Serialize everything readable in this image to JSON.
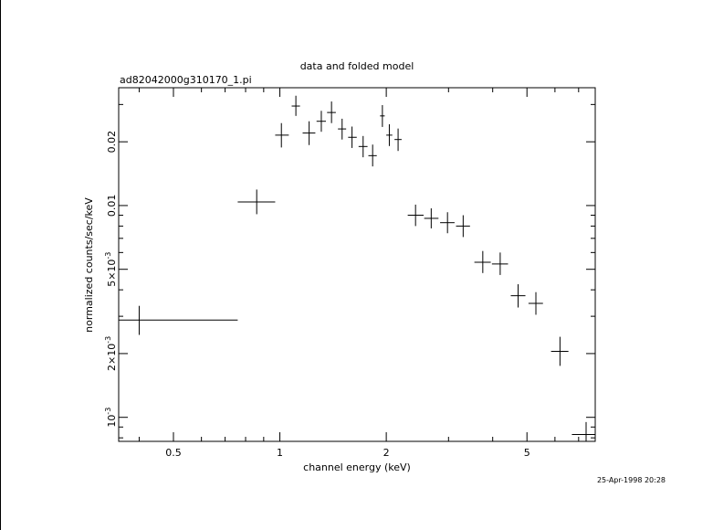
{
  "chart_data": {
    "type": "scatter",
    "title": "data and folded model",
    "subtitle": "ad82042000g310170_1.pi",
    "xlabel": "channel energy (keV)",
    "ylabel": "normalized counts/sec/keV",
    "timestamp": "25-Apr-1998 20:28",
    "xscale": "log",
    "yscale": "log",
    "xlim": [
      0.35,
      7.8
    ],
    "ylim": [
      0.00077,
      0.036
    ],
    "x_tick_labels": [
      "0.5",
      "1",
      "2",
      "5"
    ],
    "y_tick_labels": [
      "10^-3",
      "2×10^-3",
      "5×10^-3",
      "0.01",
      "0.02"
    ],
    "y_tick_label_parts": [
      {
        "base": "10",
        "exp": "-3"
      },
      {
        "base": "2×10",
        "exp": "-3"
      },
      {
        "base": "5×10",
        "exp": "-3"
      },
      {
        "base": "0.01",
        "exp": ""
      },
      {
        "base": "0.02",
        "exp": ""
      }
    ],
    "points": [
      {
        "x": 0.4,
        "xlo": 0.35,
        "xhi": 0.76,
        "y": 0.00288,
        "ylo": 0.00245,
        "yhi": 0.00336
      },
      {
        "x": 0.86,
        "xlo": 0.76,
        "xhi": 0.97,
        "y": 0.0104,
        "ylo": 0.0091,
        "yhi": 0.0119
      },
      {
        "x": 1.01,
        "xlo": 0.97,
        "xhi": 1.06,
        "y": 0.0215,
        "ylo": 0.0188,
        "yhi": 0.0245
      },
      {
        "x": 1.11,
        "xlo": 1.08,
        "xhi": 1.14,
        "y": 0.0295,
        "ylo": 0.0265,
        "yhi": 0.033
      },
      {
        "x": 1.21,
        "xlo": 1.16,
        "xhi": 1.26,
        "y": 0.022,
        "ylo": 0.0193,
        "yhi": 0.025
      },
      {
        "x": 1.31,
        "xlo": 1.27,
        "xhi": 1.35,
        "y": 0.025,
        "ylo": 0.0223,
        "yhi": 0.028
      },
      {
        "x": 1.4,
        "xlo": 1.36,
        "xhi": 1.44,
        "y": 0.0275,
        "ylo": 0.0245,
        "yhi": 0.031
      },
      {
        "x": 1.5,
        "xlo": 1.46,
        "xhi": 1.54,
        "y": 0.023,
        "ylo": 0.0205,
        "yhi": 0.0257
      },
      {
        "x": 1.6,
        "xlo": 1.56,
        "xhi": 1.65,
        "y": 0.021,
        "ylo": 0.0187,
        "yhi": 0.0236
      },
      {
        "x": 1.72,
        "xlo": 1.67,
        "xhi": 1.77,
        "y": 0.019,
        "ylo": 0.0169,
        "yhi": 0.0213
      },
      {
        "x": 1.83,
        "xlo": 1.78,
        "xhi": 1.88,
        "y": 0.0172,
        "ylo": 0.0153,
        "yhi": 0.0194
      },
      {
        "x": 1.95,
        "xlo": 1.92,
        "xhi": 1.98,
        "y": 0.0265,
        "ylo": 0.0235,
        "yhi": 0.0298
      },
      {
        "x": 2.04,
        "xlo": 2.0,
        "xhi": 2.08,
        "y": 0.0215,
        "ylo": 0.0191,
        "yhi": 0.0242
      },
      {
        "x": 2.16,
        "xlo": 2.11,
        "xhi": 2.21,
        "y": 0.0205,
        "ylo": 0.0181,
        "yhi": 0.0231
      },
      {
        "x": 2.42,
        "xlo": 2.3,
        "xhi": 2.55,
        "y": 0.009,
        "ylo": 0.008,
        "yhi": 0.0101
      },
      {
        "x": 2.68,
        "xlo": 2.56,
        "xhi": 2.81,
        "y": 0.0087,
        "ylo": 0.0078,
        "yhi": 0.0097
      },
      {
        "x": 2.98,
        "xlo": 2.84,
        "xhi": 3.12,
        "y": 0.0083,
        "ylo": 0.0074,
        "yhi": 0.0093
      },
      {
        "x": 3.3,
        "xlo": 3.15,
        "xhi": 3.45,
        "y": 0.008,
        "ylo": 0.0071,
        "yhi": 0.009
      },
      {
        "x": 3.75,
        "xlo": 3.55,
        "xhi": 3.95,
        "y": 0.0054,
        "ylo": 0.0048,
        "yhi": 0.0061
      },
      {
        "x": 4.2,
        "xlo": 3.98,
        "xhi": 4.42,
        "y": 0.0053,
        "ylo": 0.0047,
        "yhi": 0.006
      },
      {
        "x": 4.72,
        "xlo": 4.5,
        "xhi": 4.95,
        "y": 0.00375,
        "ylo": 0.0033,
        "yhi": 0.00425
      },
      {
        "x": 5.3,
        "xlo": 5.05,
        "xhi": 5.55,
        "y": 0.00345,
        "ylo": 0.00305,
        "yhi": 0.0039
      },
      {
        "x": 6.2,
        "xlo": 5.85,
        "xhi": 6.55,
        "y": 0.00205,
        "ylo": 0.00175,
        "yhi": 0.0024
      },
      {
        "x": 7.35,
        "xlo": 6.7,
        "xhi": 7.8,
        "y": 0.00083,
        "ylo": 0.00072,
        "yhi": 0.00095
      }
    ]
  }
}
